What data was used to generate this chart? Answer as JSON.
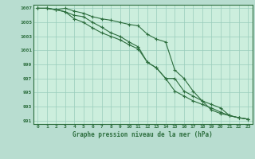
{
  "xlabel": "Graphe pression niveau de la mer (hPa)",
  "bg_color": "#b8ddd0",
  "plot_bg_color": "#cceedd",
  "grid_color": "#99ccbb",
  "line_color": "#2d6e3e",
  "x": [
    0,
    1,
    2,
    3,
    4,
    5,
    6,
    7,
    8,
    9,
    10,
    11,
    12,
    13,
    14,
    15,
    16,
    17,
    18,
    19,
    20,
    21,
    22,
    23
  ],
  "line1": [
    1007.0,
    1007.0,
    1006.8,
    1007.0,
    1006.6,
    1006.3,
    1005.8,
    1005.5,
    1005.3,
    1005.0,
    1004.7,
    1004.5,
    1003.3,
    1002.6,
    1002.2,
    998.2,
    997.0,
    995.2,
    993.8,
    992.5,
    992.0,
    991.7,
    991.4,
    991.2
  ],
  "line2": [
    1007.0,
    1007.0,
    1006.8,
    1006.5,
    1006.0,
    1005.8,
    1005.0,
    1004.3,
    1003.5,
    1003.0,
    1002.2,
    1001.5,
    999.3,
    998.5,
    997.0,
    997.0,
    995.2,
    994.5,
    993.8,
    993.3,
    992.8,
    991.7,
    991.4,
    991.2
  ],
  "line3": [
    1007.0,
    1007.0,
    1006.8,
    1006.5,
    1005.5,
    1005.0,
    1004.2,
    1003.5,
    1003.0,
    1002.5,
    1001.8,
    1001.2,
    999.3,
    998.5,
    997.0,
    995.2,
    994.5,
    993.8,
    993.3,
    992.8,
    992.2,
    991.7,
    991.4,
    991.2
  ],
  "ylim": [
    990.5,
    1007.5
  ],
  "yticks": [
    991,
    993,
    995,
    997,
    999,
    1001,
    1003,
    1005,
    1007
  ],
  "xlim": [
    -0.5,
    23.5
  ]
}
